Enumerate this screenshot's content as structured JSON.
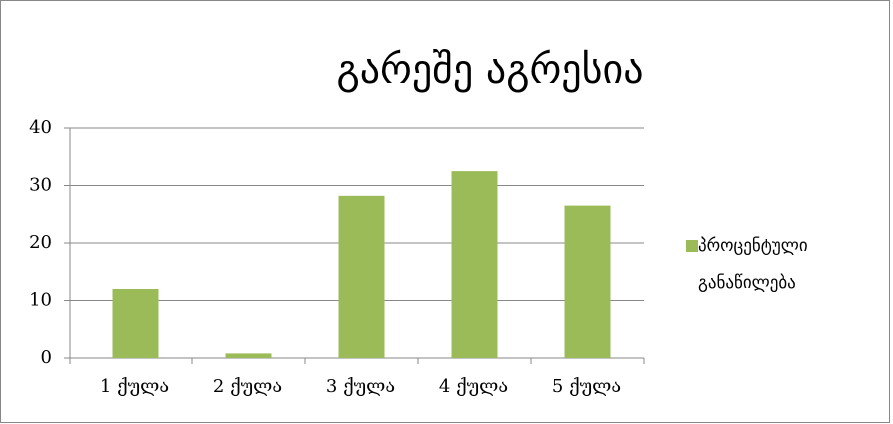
{
  "chart_data": {
    "type": "bar",
    "title": "გარეშე აგრესია",
    "categories": [
      "1 ქულა",
      "2 ქულა",
      "3 ქულა",
      "4 ქულა",
      "5 ქულა"
    ],
    "series": [
      {
        "name": "პროცენტული განაწილება",
        "color": "#9bbb59",
        "values": [
          12,
          0.8,
          28.2,
          32.5,
          26.5
        ]
      }
    ],
    "ylim": [
      0,
      40
    ],
    "yticks": [
      0,
      10,
      20,
      30,
      40
    ],
    "grid": true,
    "legend": "right"
  }
}
